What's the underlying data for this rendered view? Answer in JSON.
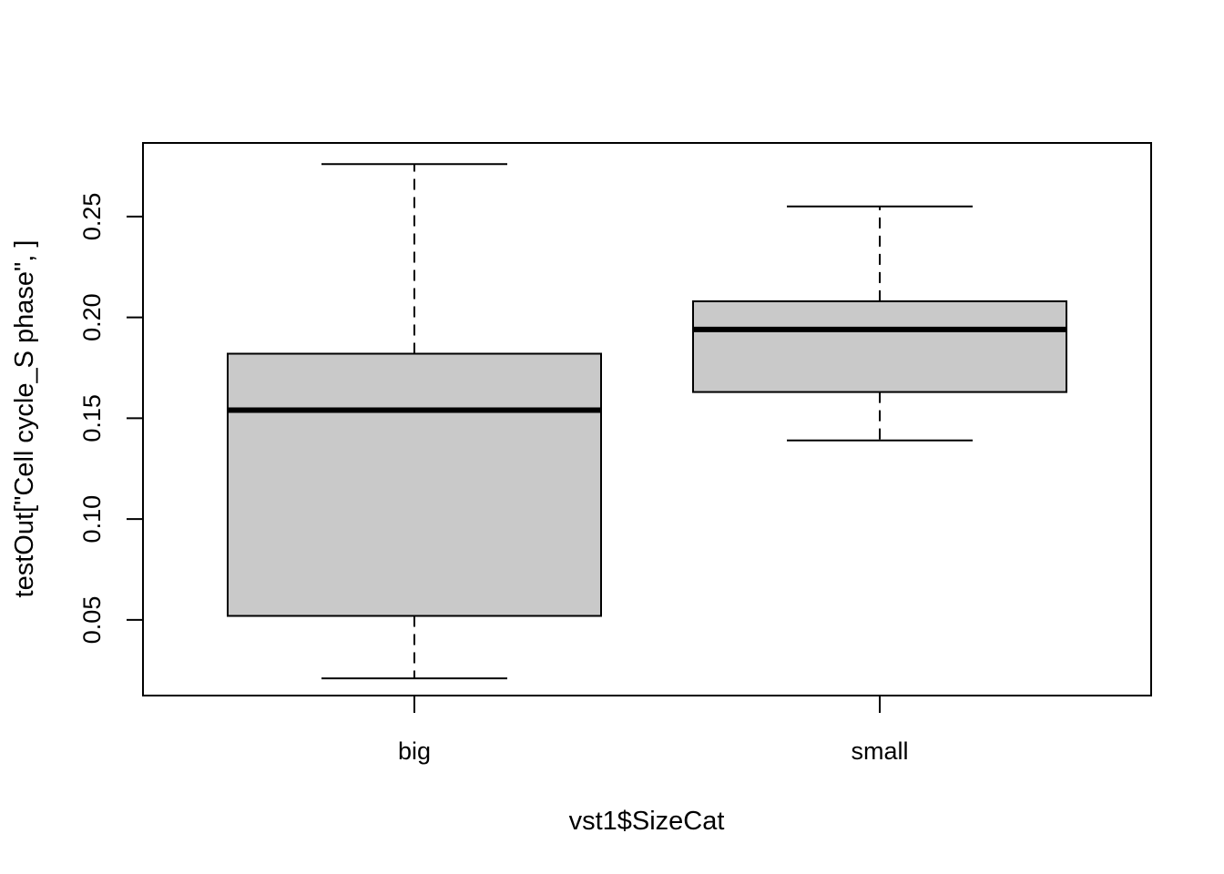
{
  "chart_data": {
    "type": "boxplot",
    "title": "",
    "xlabel": "vst1$SizeCat",
    "ylabel": "testOut[\"Cell cycle_S phase\", ]",
    "categories": [
      "big",
      "small"
    ],
    "boxes": [
      {
        "category": "big",
        "min": 0.021,
        "q1": 0.052,
        "median": 0.154,
        "q3": 0.182,
        "max": 0.276
      },
      {
        "category": "small",
        "min": 0.139,
        "q1": 0.163,
        "median": 0.194,
        "q3": 0.208,
        "max": 0.255
      }
    ],
    "yticks": [
      "0.05",
      "0.10",
      "0.15",
      "0.20",
      "0.25"
    ],
    "ylim": [
      0.0125,
      0.2865
    ],
    "grid": false,
    "box_fill": "#c9c9c9",
    "line_color": "#000000"
  }
}
